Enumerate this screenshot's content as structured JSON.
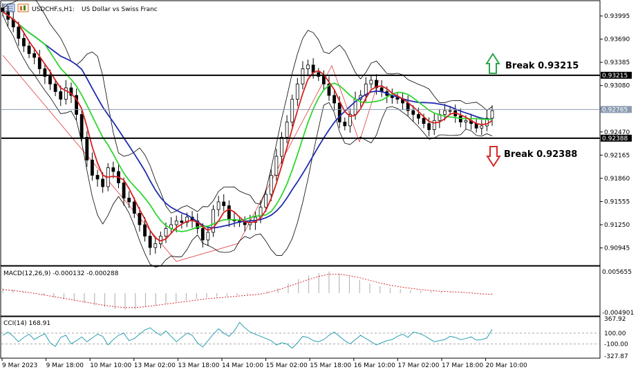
{
  "header": {
    "symbol": "USDCHF.s,H1:",
    "description": "US Dollar vs Swiss Franc"
  },
  "chart_data": [
    {
      "type": "candlestick",
      "title": "USDCHF.s,H1: US Dollar vs Swiss Franc",
      "ylim": [
        0.9075,
        0.9415
      ],
      "price_ticks": [
        "0.93995",
        "0.93690",
        "0.93385",
        "0.93080",
        "0.92775",
        "0.92470",
        "0.92165",
        "0.91860",
        "0.91555",
        "0.91250",
        "0.90945"
      ],
      "price_tick_values": [
        0.93995,
        0.9369,
        0.93385,
        0.9308,
        0.92775,
        0.9247,
        0.92165,
        0.9186,
        0.91555,
        0.9125,
        0.90945
      ],
      "time_labels": [
        "9 Mar 2023",
        "9 Mar 18:00",
        "10 Mar 10:00",
        "13 Mar 02:00",
        "13 Mar 18:00",
        "14 Mar 10:00",
        "15 Mar 02:00",
        "15 Mar 18:00",
        "16 Mar 10:00",
        "17 Mar 02:00",
        "17 Mar 18:00",
        "20 Mar 10:00"
      ],
      "levels": [
        {
          "label": "Break 0.93215",
          "value": 0.93215,
          "tag": "0.93215",
          "direction": "up"
        },
        {
          "label": "Break 0.92388",
          "value": 0.92388,
          "tag": "0.92388",
          "direction": "down"
        }
      ],
      "current_price": {
        "value": 0.92765,
        "tag": "0.92765"
      },
      "close_path": [
        0.9405,
        0.9395,
        0.9385,
        0.937,
        0.936,
        0.935,
        0.9345,
        0.933,
        0.932,
        0.931,
        0.93,
        0.929,
        0.9305,
        0.9295,
        0.927,
        0.924,
        0.921,
        0.919,
        0.9185,
        0.9175,
        0.92,
        0.9195,
        0.918,
        0.916,
        0.9155,
        0.914,
        0.9125,
        0.911,
        0.9095,
        0.91,
        0.911,
        0.912,
        0.9125,
        0.913,
        0.9128,
        0.9135,
        0.913,
        0.912,
        0.9105,
        0.9115,
        0.9145,
        0.9155,
        0.915,
        0.9132,
        0.913,
        0.9128,
        0.9125,
        0.9128,
        0.9135,
        0.9148,
        0.9165,
        0.919,
        0.9215,
        0.924,
        0.926,
        0.929,
        0.931,
        0.933,
        0.9335,
        0.9325,
        0.932,
        0.931,
        0.9295,
        0.9285,
        0.926,
        0.9255,
        0.927,
        0.929,
        0.9295,
        0.931,
        0.9315,
        0.9305,
        0.93,
        0.9295,
        0.9292,
        0.929,
        0.9285,
        0.9275,
        0.927,
        0.9265,
        0.9258,
        0.925,
        0.9262,
        0.927,
        0.9275,
        0.9275,
        0.9268,
        0.926,
        0.9262,
        0.9258,
        0.9252,
        0.9255,
        0.9265,
        0.9275
      ],
      "indicators": [
        "Moving Average (red)",
        "Moving Average (green)",
        "Moving Average (blue)",
        "Bollinger Bands (black)"
      ]
    },
    {
      "type": "bar",
      "title": "MACD(12,26,9) -0.000132 -0.000288",
      "ylim": [
        -0.004901,
        0.005655
      ],
      "ticks": [
        "0.005655",
        "-0.004901"
      ],
      "histogram": [
        0.0012,
        0.0008,
        0.0004,
        0.0,
        -0.0005,
        -0.001,
        -0.0014,
        -0.0018,
        -0.0022,
        -0.0028,
        -0.0032,
        -0.0036,
        -0.0038,
        -0.0036,
        -0.0032,
        -0.0028,
        -0.0024,
        -0.002,
        -0.0016,
        -0.0013,
        -0.0011,
        -0.0009,
        -0.0007,
        -0.0005,
        -0.0003,
        -0.0001,
        0.0004,
        0.0012,
        0.0022,
        0.0032,
        0.004,
        0.0046,
        0.0049,
        0.0045,
        0.0038,
        0.003,
        0.0022,
        0.0016,
        0.0012,
        0.0009,
        0.0007,
        0.0005,
        0.0004,
        0.0003,
        0.0002,
        0.0001,
        0.0,
        -0.0001,
        -0.00013
      ],
      "signal": [
        0.0008,
        0.0006,
        0.0003,
        0.0,
        -0.0004,
        -0.0008,
        -0.0012,
        -0.0016,
        -0.002,
        -0.0024,
        -0.0028,
        -0.0031,
        -0.0033,
        -0.0033,
        -0.0031,
        -0.0028,
        -0.0025,
        -0.0022,
        -0.0019,
        -0.0016,
        -0.0013,
        -0.0011,
        -0.0009,
        -0.0007,
        -0.0005,
        -0.0003,
        0.0001,
        0.0007,
        0.0015,
        0.0023,
        0.0031,
        0.0038,
        0.0043,
        0.0043,
        0.004,
        0.0035,
        0.0029,
        0.0023,
        0.0018,
        0.0014,
        0.0011,
        0.0008,
        0.0006,
        0.0004,
        0.0003,
        0.0002,
        0.0,
        -0.0002,
        -0.00029
      ]
    },
    {
      "type": "line",
      "title": "CCI(14) 168.91",
      "ylim": [
        -327.87,
        367.92
      ],
      "ticks": [
        "367.92",
        "100.00",
        "-100.00",
        "-327.87"
      ],
      "tick_values": [
        367.92,
        100.0,
        -100.0,
        -327.87
      ],
      "values": [
        60,
        120,
        40,
        -60,
        20,
        80,
        -20,
        40,
        90,
        -80,
        -150,
        20,
        60,
        -100,
        -40,
        30,
        -60,
        10,
        80,
        40,
        -120,
        -20,
        60,
        100,
        -40,
        0,
        80,
        160,
        200,
        120,
        60,
        140,
        40,
        -60,
        20,
        100,
        60,
        -80,
        -160,
        -40,
        80,
        180,
        100,
        40,
        140,
        300,
        200,
        120,
        80,
        40,
        0,
        -40,
        -120,
        -80,
        -100,
        -180,
        -80,
        40,
        20,
        -40,
        -60,
        -20,
        60,
        120,
        40,
        -40,
        -100,
        -20,
        60,
        0,
        -60,
        -120,
        -80,
        -40,
        -20,
        40,
        80,
        20,
        120,
        100,
        60,
        0,
        -60,
        -40,
        -20,
        40,
        20,
        -20,
        0,
        30,
        -30,
        -20,
        10,
        168.91
      ]
    }
  ]
}
